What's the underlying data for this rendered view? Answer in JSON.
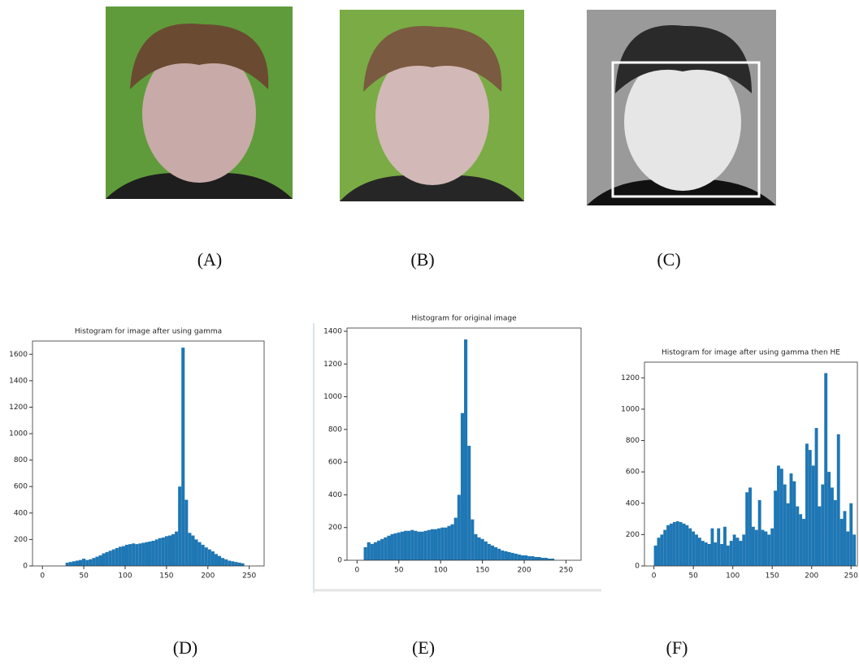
{
  "figure_labels": [
    "(A)",
    "(B)",
    "(C)",
    "(D)",
    "(E)",
    "(F)"
  ],
  "chart_data": [
    {
      "type": "histogram",
      "title": "Histogram for image after using gamma",
      "color": "#1f77b4",
      "bins": [
        0,
        4,
        8,
        12,
        16,
        20,
        24,
        28,
        32,
        36,
        40,
        44,
        48,
        52,
        56,
        60,
        64,
        68,
        72,
        76,
        80,
        84,
        88,
        92,
        96,
        100,
        104,
        108,
        112,
        116,
        120,
        124,
        128,
        132,
        136,
        140,
        144,
        148,
        152,
        156,
        160,
        164,
        168,
        172,
        176,
        180,
        184,
        188,
        192,
        196,
        200,
        204,
        208,
        212,
        216,
        220,
        224,
        228,
        232,
        236,
        240,
        244,
        248,
        252,
        256
      ],
      "values": [
        0,
        0,
        0,
        0,
        0,
        0,
        0,
        25,
        30,
        35,
        40,
        45,
        55,
        45,
        50,
        60,
        70,
        80,
        95,
        105,
        115,
        125,
        135,
        145,
        150,
        160,
        165,
        170,
        165,
        170,
        175,
        180,
        185,
        190,
        200,
        210,
        215,
        225,
        230,
        240,
        260,
        600,
        1650,
        500,
        250,
        230,
        200,
        180,
        160,
        140,
        125,
        110,
        90,
        75,
        60,
        50,
        40,
        35,
        30,
        25,
        20,
        0,
        0,
        0
      ],
      "xlim": [
        -12,
        268
      ],
      "ylim": [
        0,
        1700
      ],
      "xticks": [
        0,
        50,
        100,
        150,
        200,
        250
      ],
      "yticks": [
        0,
        200,
        400,
        600,
        800,
        1000,
        1200,
        1400,
        1600
      ]
    },
    {
      "type": "histogram",
      "title": "Histogram for original image",
      "color": "#1f77b4",
      "bins": [
        0,
        4,
        8,
        12,
        16,
        20,
        24,
        28,
        32,
        36,
        40,
        44,
        48,
        52,
        56,
        60,
        64,
        68,
        72,
        76,
        80,
        84,
        88,
        92,
        96,
        100,
        104,
        108,
        112,
        116,
        120,
        124,
        128,
        132,
        136,
        140,
        144,
        148,
        152,
        156,
        160,
        164,
        168,
        172,
        176,
        180,
        184,
        188,
        192,
        196,
        200,
        204,
        208,
        212,
        216,
        220,
        224,
        228,
        232,
        236,
        240,
        244,
        248,
        252,
        256
      ],
      "values": [
        0,
        0,
        80,
        110,
        100,
        110,
        120,
        130,
        140,
        150,
        160,
        165,
        170,
        175,
        180,
        180,
        185,
        180,
        175,
        175,
        180,
        185,
        190,
        190,
        195,
        200,
        200,
        210,
        220,
        260,
        400,
        900,
        1350,
        700,
        250,
        160,
        140,
        130,
        115,
        100,
        90,
        80,
        70,
        60,
        55,
        50,
        45,
        40,
        35,
        30,
        30,
        25,
        25,
        20,
        20,
        15,
        15,
        10,
        10,
        0,
        0,
        0,
        0,
        0
      ],
      "xlim": [
        -12,
        268
      ],
      "ylim": [
        0,
        1420
      ],
      "xticks": [
        0,
        50,
        100,
        150,
        200,
        250
      ],
      "yticks": [
        0,
        200,
        400,
        600,
        800,
        1000,
        1200,
        1400
      ]
    },
    {
      "type": "histogram",
      "title": "Histogram for image after using gamma then HE",
      "color": "#1f77b4",
      "bins": [
        0,
        4,
        8,
        12,
        16,
        20,
        24,
        28,
        32,
        36,
        40,
        44,
        48,
        52,
        56,
        60,
        64,
        68,
        72,
        76,
        80,
        84,
        88,
        92,
        96,
        100,
        104,
        108,
        112,
        116,
        120,
        124,
        128,
        132,
        136,
        140,
        144,
        148,
        152,
        156,
        160,
        164,
        168,
        172,
        176,
        180,
        184,
        188,
        192,
        196,
        200,
        204,
        208,
        212,
        216,
        220,
        224,
        228,
        232,
        236,
        240,
        244,
        248,
        252,
        256
      ],
      "values": [
        130,
        180,
        200,
        230,
        260,
        270,
        280,
        285,
        280,
        270,
        260,
        240,
        220,
        200,
        180,
        160,
        150,
        140,
        240,
        150,
        240,
        140,
        250,
        130,
        160,
        200,
        180,
        160,
        200,
        470,
        500,
        250,
        230,
        420,
        230,
        220,
        200,
        240,
        480,
        640,
        620,
        520,
        400,
        590,
        540,
        380,
        330,
        300,
        780,
        740,
        640,
        880,
        380,
        520,
        1230,
        600,
        500,
        420,
        840,
        300,
        350,
        220,
        400,
        200
      ],
      "xlim": [
        -12,
        258
      ],
      "ylim": [
        0,
        1300
      ],
      "xticks": [
        0,
        50,
        100,
        150,
        200,
        250
      ],
      "yticks": [
        0,
        200,
        400,
        600,
        800,
        1000,
        1200
      ]
    }
  ]
}
